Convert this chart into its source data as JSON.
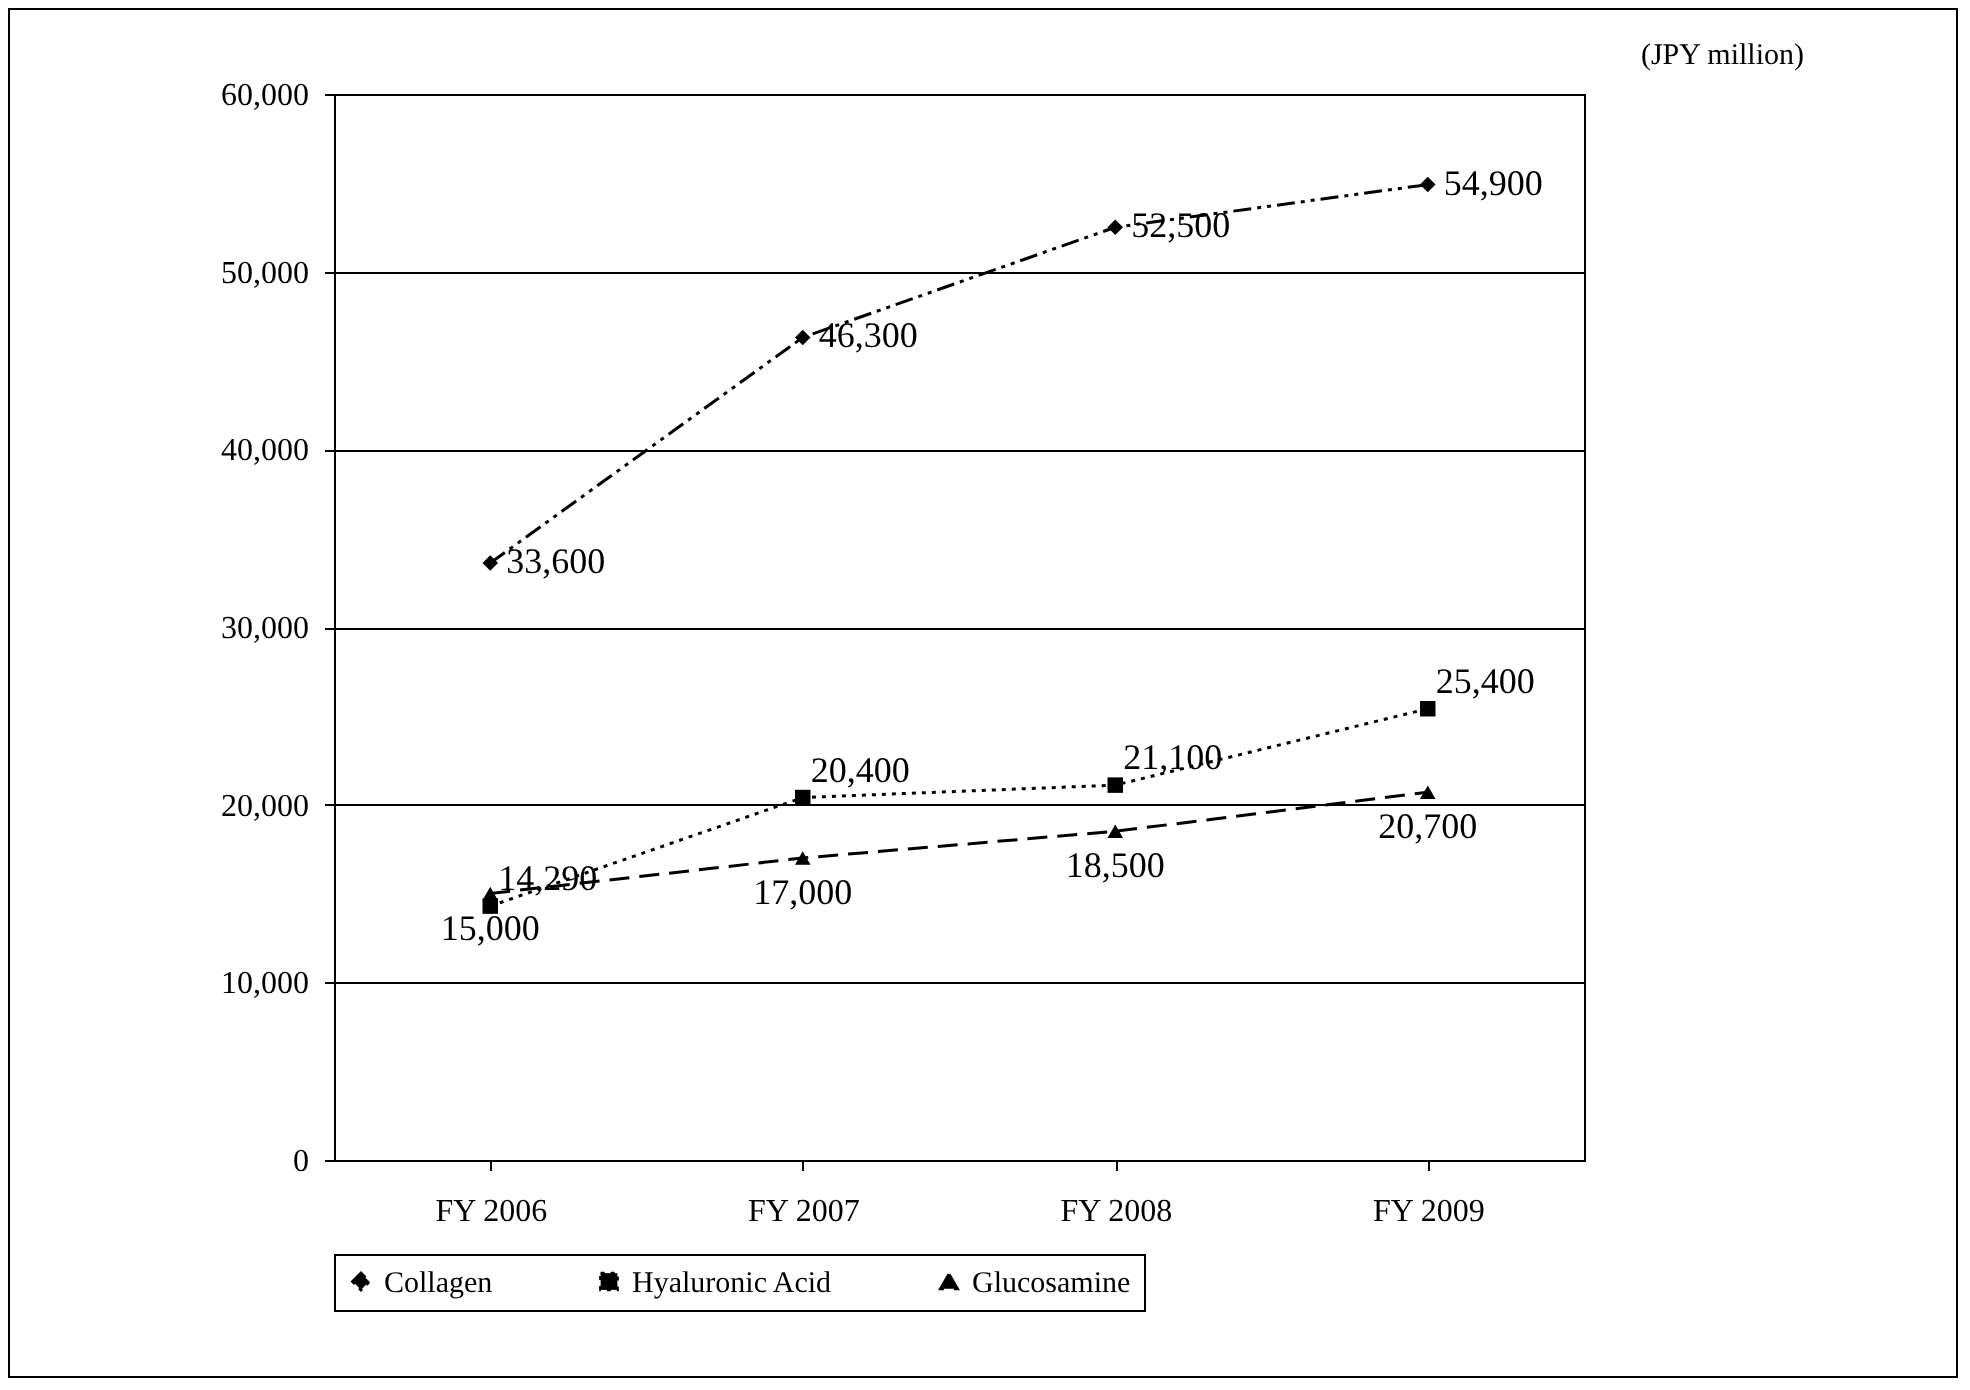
{
  "chart_data": {
    "type": "line",
    "categories": [
      "FY 2006",
      "FY 2007",
      "FY 2008",
      "FY 2009"
    ],
    "series": [
      {
        "name": "Collagen",
        "color": "#000000",
        "marker": "diamond",
        "line_style": "dashdot",
        "values": [
          33600,
          46300,
          52500,
          54900
        ],
        "value_labels": [
          "33,600",
          "46,300",
          "52,500",
          "54,900"
        ]
      },
      {
        "name": "Hyaluronic Acid",
        "color": "#000000",
        "marker": "square",
        "line_style": "dotted",
        "values": [
          14290,
          20400,
          21100,
          25400
        ],
        "value_labels": [
          "14,290",
          "20,400",
          "21,100",
          "25,400"
        ]
      },
      {
        "name": "Glucosamine",
        "color": "#000000",
        "marker": "triangle",
        "line_style": "dashed",
        "values": [
          15000,
          17000,
          18500,
          20700
        ],
        "value_labels": [
          "15,000",
          "17,000",
          "18,500",
          "20,700"
        ]
      }
    ],
    "ylim": [
      0,
      60000
    ],
    "yticks": [
      0,
      {
        "value": 10000,
        "label": "10,000"
      },
      {
        "value": 20000,
        "label": "20,000"
      },
      {
        "value": 30000,
        "label": "30,000"
      },
      {
        "value": 40000,
        "label": "40,000"
      },
      {
        "value": 50000,
        "label": "50,000"
      },
      {
        "value": 60000,
        "label": "60,000"
      }
    ],
    "grid": "y",
    "legend": "bottom",
    "annotations": [
      "(JPY million)"
    ]
  }
}
